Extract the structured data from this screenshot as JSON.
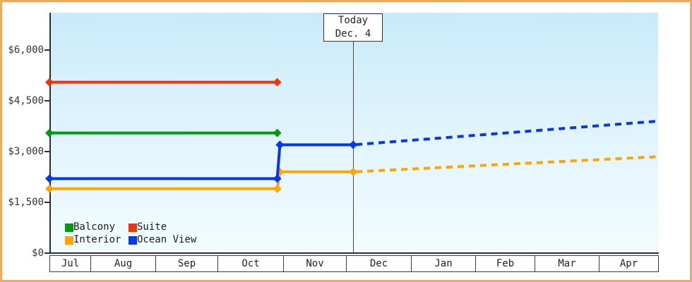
{
  "today_box": {
    "line1": "Today",
    "line2": "Dec. 4"
  },
  "y_axis": {
    "tick_labels": [
      "$0",
      "$1,500",
      "$3,000",
      "$4,500",
      "$6,000"
    ],
    "tick_values": [
      0,
      1500,
      3000,
      4500,
      6000
    ],
    "min": 0,
    "max": 6000
  },
  "x_axis": {
    "months": [
      "Jul",
      "Aug",
      "Sep",
      "Oct",
      "Nov",
      "Dec",
      "Jan",
      "Feb",
      "Mar",
      "Apr"
    ]
  },
  "legend": {
    "items": [
      {
        "label": "Balcony",
        "color": "#009b0f"
      },
      {
        "label": "Suite",
        "color": "#f0350b"
      },
      {
        "label": "Interior",
        "color": "#ffa502"
      },
      {
        "label": "Ocean View",
        "color": "#0636ef"
      }
    ]
  },
  "colors": {
    "frame_border": "#eeab5f",
    "plot_gradient_top": "#c9eafa",
    "plot_gradient_bottom": "#f2fcff",
    "axis": "#2e2e2e",
    "today_line": "#4a4a4a"
  },
  "chart_data": {
    "type": "line",
    "title": "",
    "xlabel": "",
    "ylabel": "",
    "x_categories": [
      "Jul",
      "Aug",
      "Sep",
      "Oct",
      "Nov",
      "Dec",
      "Jan",
      "Feb",
      "Mar",
      "Apr"
    ],
    "ylim": [
      0,
      6000
    ],
    "y_tick_interval": 1500,
    "grid": false,
    "legend_position": "bottom-left-inside",
    "today_marker": {
      "label": "Today",
      "date": "Dec. 4",
      "month_position": 5.11
    },
    "series": [
      {
        "name": "Balcony",
        "color": "#009b0f",
        "style": "solid",
        "points_month_price": [
          [
            0,
            3550
          ],
          [
            3.91,
            3550
          ]
        ],
        "projected_dashed": []
      },
      {
        "name": "Suite",
        "color": "#f0350b",
        "style": "solid",
        "points_month_price": [
          [
            0,
            5050
          ],
          [
            3.91,
            5050
          ]
        ],
        "projected_dashed": []
      },
      {
        "name": "Interior",
        "color": "#ffa502",
        "style": "solid",
        "points_month_price": [
          [
            0,
            1900
          ],
          [
            3.91,
            1900
          ],
          [
            3.95,
            2400
          ],
          [
            5.11,
            2400
          ]
        ],
        "projected_dashed": [
          [
            5.11,
            2400
          ],
          [
            10,
            2850
          ]
        ]
      },
      {
        "name": "Ocean View",
        "color": "#0636ef",
        "style": "solid",
        "points_month_price": [
          [
            0,
            2200
          ],
          [
            3.91,
            2200
          ],
          [
            3.95,
            3200
          ],
          [
            5.11,
            3200
          ]
        ],
        "projected_dashed": [
          [
            5.11,
            3200
          ],
          [
            10,
            3900
          ]
        ]
      }
    ]
  }
}
